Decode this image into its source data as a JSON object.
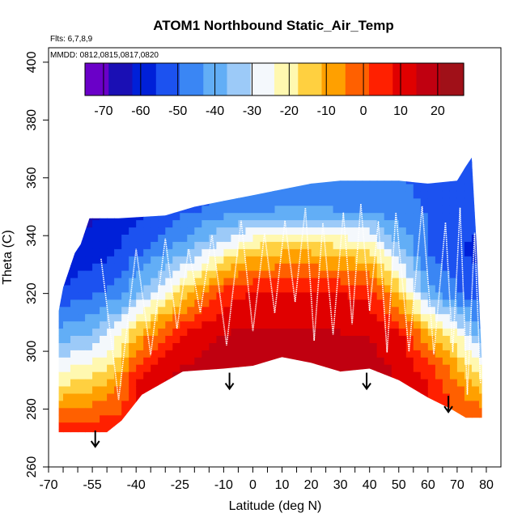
{
  "chart_data": {
    "type": "heatmap",
    "title": "ATOM1 Northbound Static_Air_Temp",
    "flights_note": "Flts: 6,7,8,9",
    "dates_note": "MMDD: 0812,0815,0817,0820",
    "xlabel": "Latitude (deg N)",
    "ylabel": "Theta (C)",
    "xlim": [
      -70,
      85
    ],
    "ylim": [
      260,
      405
    ],
    "x_ticks": [
      -70,
      -55,
      -40,
      -25,
      -10,
      0,
      10,
      20,
      30,
      40,
      50,
      60,
      70,
      80
    ],
    "y_ticks": [
      260,
      280,
      300,
      320,
      340,
      360,
      380,
      400
    ],
    "colorbar": {
      "range": [
        -75,
        27
      ],
      "ticks": [
        -70,
        -60,
        -50,
        -40,
        -30,
        -20,
        -10,
        0,
        10,
        20
      ],
      "palette": [
        "#6a00c8",
        "#1a0fb4",
        "#0020d8",
        "#1c52f0",
        "#3a86f4",
        "#62aef6",
        "#9ccaf8",
        "#f4f8fc",
        "#fff8b0",
        "#ffd040",
        "#ffa000",
        "#ff6000",
        "#ff2000",
        "#e00000",
        "#c00010",
        "#a01018"
      ]
    },
    "domain_top": [
      [
        -66.5,
        314
      ],
      [
        -65,
        322
      ],
      [
        -61,
        334
      ],
      [
        -59,
        337
      ],
      [
        -56,
        346
      ],
      [
        -46,
        346
      ],
      [
        -30,
        347
      ],
      [
        -20,
        350
      ],
      [
        -10,
        352
      ],
      [
        0,
        354
      ],
      [
        10,
        356
      ],
      [
        20,
        358
      ],
      [
        30,
        359
      ],
      [
        40,
        359
      ],
      [
        50,
        359
      ],
      [
        60,
        358
      ],
      [
        70,
        359
      ],
      [
        73,
        364
      ],
      [
        75,
        367
      ],
      [
        76.5,
        340
      ],
      [
        78.5,
        296
      ]
    ],
    "domain_bottom": [
      [
        -66.5,
        272
      ],
      [
        -50,
        272
      ],
      [
        -45,
        276
      ],
      [
        -38,
        285
      ],
      [
        -24,
        293
      ],
      [
        -10,
        294
      ],
      [
        0,
        295
      ],
      [
        10,
        298
      ],
      [
        20,
        296
      ],
      [
        30,
        293
      ],
      [
        40,
        294
      ],
      [
        50,
        290
      ],
      [
        60,
        284
      ],
      [
        68,
        280
      ],
      [
        73,
        277
      ],
      [
        78.5,
        277
      ]
    ],
    "temp_profile": [
      {
        "theta": 275,
        "lat": [
          -66.5,
          -55,
          -50,
          -45,
          -38,
          -24,
          -10,
          0,
          10,
          20,
          30,
          40,
          50,
          60,
          70,
          78.5
        ],
        "temp": [
          2,
          3,
          5,
          5,
          10,
          12,
          14,
          15,
          15,
          15,
          14,
          14,
          12,
          8,
          2,
          2
        ]
      },
      {
        "theta": 290,
        "lat": [
          -66.5,
          -55,
          -50,
          -45,
          -38,
          -24,
          -10,
          0,
          10,
          20,
          30,
          40,
          50,
          60,
          70,
          78.5
        ],
        "temp": [
          -20,
          -15,
          -12,
          -6,
          12,
          16,
          18,
          18,
          18,
          18,
          18,
          18,
          14,
          8,
          -5,
          -15
        ]
      },
      {
        "theta": 305,
        "lat": [
          -66.5,
          -55,
          -50,
          -45,
          -38,
          -24,
          -10,
          0,
          10,
          20,
          30,
          40,
          50,
          60,
          70,
          78.5
        ],
        "temp": [
          -40,
          -35,
          -30,
          -22,
          -8,
          10,
          15,
          16,
          16,
          16,
          15,
          14,
          10,
          -8,
          -22,
          -40
        ]
      },
      {
        "theta": 320,
        "lat": [
          -66.5,
          -55,
          -50,
          -45,
          -38,
          -24,
          -10,
          0,
          10,
          20,
          30,
          40,
          50,
          60,
          70,
          78.5
        ],
        "temp": [
          -55,
          -50,
          -48,
          -44,
          -35,
          -15,
          5,
          8,
          8,
          8,
          8,
          6,
          -12,
          -40,
          -48,
          -55
        ]
      },
      {
        "theta": 335,
        "lat": [
          -66.5,
          -55,
          -50,
          -45,
          -38,
          -24,
          -10,
          0,
          10,
          20,
          30,
          40,
          50,
          60,
          70,
          78.5
        ],
        "temp": [
          -62,
          -60,
          -58,
          -55,
          -50,
          -40,
          -25,
          -15,
          -12,
          -12,
          -15,
          -18,
          -35,
          -50,
          -55,
          -58
        ]
      },
      {
        "theta": 350,
        "lat": [
          -66.5,
          -55,
          -50,
          -45,
          -38,
          -24,
          -10,
          0,
          10,
          20,
          30,
          40,
          50,
          60,
          70,
          78.5
        ],
        "temp": [
          -66,
          -64,
          -62,
          -60,
          -58,
          -52,
          -48,
          -46,
          -44,
          -44,
          -45,
          -46,
          -48,
          -50,
          -52,
          -55
        ]
      },
      {
        "theta": 368,
        "lat": [
          -66.5,
          -55,
          -50,
          -45,
          -38,
          -24,
          -10,
          0,
          10,
          20,
          30,
          40,
          50,
          60,
          70,
          78.5
        ],
        "temp": [
          -68,
          -66,
          -64,
          -62,
          -60,
          -56,
          -52,
          -50,
          -48,
          -48,
          -48,
          -48,
          -50,
          -52,
          -52,
          -55
        ]
      }
    ],
    "arrows": [
      {
        "lat": -54,
        "theta": 267
      },
      {
        "lat": -8,
        "theta": 287
      },
      {
        "lat": 39,
        "theta": 287
      },
      {
        "lat": 67,
        "theta": 279
      }
    ],
    "flight_track_peaks_lat": [
      -52,
      -40,
      -30,
      -22,
      -14,
      -4,
      4,
      11,
      18,
      24,
      31,
      37,
      43,
      49,
      58,
      66,
      71,
      76
    ]
  }
}
